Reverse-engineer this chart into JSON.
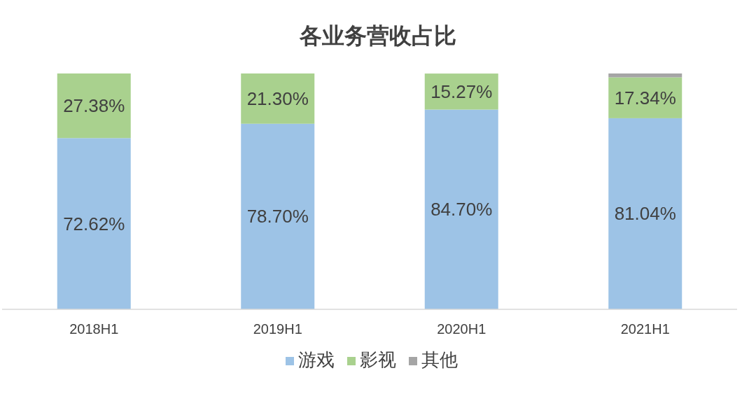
{
  "chart_data": {
    "type": "bar",
    "title": "各业务营收占比",
    "stacked": true,
    "legend": "bottom",
    "categories": [
      "2018H1",
      "2019H1",
      "2020H1",
      "2021H1"
    ],
    "series": [
      {
        "name": "游戏",
        "color": "#9dc3e6",
        "values": [
          72.62,
          78.7,
          84.7,
          81.04
        ],
        "value_labels": [
          "72.62%",
          "78.70%",
          "84.70%",
          "81.04%"
        ]
      },
      {
        "name": "影视",
        "color": "#a9d18e",
        "values": [
          27.38,
          21.3,
          15.27,
          17.34
        ],
        "value_labels": [
          "27.38%",
          "21.30%",
          "15.27%",
          "17.34%"
        ]
      },
      {
        "name": "其他",
        "color": "#a5a5a5",
        "values": [
          0,
          0,
          0,
          1.62
        ],
        "value_labels": [
          null,
          null,
          null,
          null
        ]
      }
    ]
  }
}
